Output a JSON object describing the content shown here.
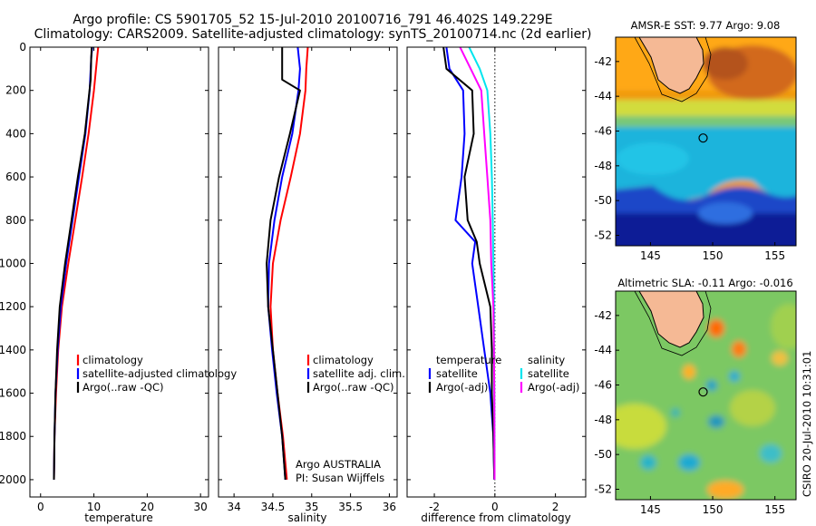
{
  "figure": {
    "title_line1": "Argo profile: CS 5901705_52 15-Jul-2010 20100716_791 46.402S 149.229E",
    "title_line2": "Climatology: CARS2009. Satellite-adjusted climatology: synTS_20100714.nc (2d earlier)",
    "credit": "Argo AUSTRALIA",
    "pi": "PI: Susan Wijffels",
    "stamp": "CSIRO 20-Jul-2010 10:31:01"
  },
  "colors": {
    "climatology": "#ff0000",
    "satellite": "#0000ff",
    "argo": "#000000",
    "satellite_salinity_diff": "#00e5ee",
    "argo_salinity_diff": "#ff00ff",
    "land": "#f5b995"
  },
  "chart_data": [
    {
      "type": "line",
      "panel": "temperature",
      "xlabel": "temperature",
      "ylabel": "",
      "xlim": [
        -2,
        31.5
      ],
      "ylim": [
        2080,
        0
      ],
      "xticks": [
        0,
        10,
        20,
        30
      ],
      "yticks": [
        0,
        200,
        400,
        600,
        800,
        1000,
        1200,
        1400,
        1600,
        1800,
        2000
      ],
      "legend_position": "lower-right",
      "series": [
        {
          "name": "climatology",
          "color": "#ff0000",
          "x": [
            10.8,
            10.6,
            10.0,
            9.0,
            7.8,
            6.5,
            5.2,
            4.0,
            3.3,
            2.9,
            2.6,
            2.5
          ],
          "y": [
            0,
            50,
            200,
            400,
            600,
            800,
            1000,
            1200,
            1400,
            1600,
            1800,
            2000
          ]
        },
        {
          "name": "satellite-adjusted climatology",
          "color": "#0000ff",
          "x": [
            9.7,
            9.5,
            9.2,
            8.4,
            7.2,
            6.0,
            4.8,
            3.8,
            3.2,
            2.8,
            2.6,
            2.5
          ],
          "y": [
            0,
            50,
            200,
            400,
            600,
            800,
            1000,
            1200,
            1400,
            1600,
            1800,
            2000
          ]
        },
        {
          "name": "Argo(..raw -QC)",
          "color": "#000000",
          "x": [
            9.6,
            9.5,
            9.4,
            8.3,
            7.0,
            5.8,
            4.6,
            3.6,
            3.1,
            2.8,
            2.6,
            2.5
          ],
          "y": [
            0,
            50,
            150,
            400,
            600,
            800,
            1000,
            1200,
            1400,
            1600,
            1800,
            2000
          ]
        }
      ]
    },
    {
      "type": "line",
      "panel": "salinity",
      "xlabel": "salinity",
      "ylabel": "",
      "xlim": [
        33.8,
        36.1
      ],
      "ylim": [
        2080,
        0
      ],
      "xticks": [
        34,
        34.5,
        35,
        35.5,
        36
      ],
      "legend_position": "lower-right",
      "series": [
        {
          "name": "climatology",
          "color": "#ff0000",
          "x": [
            34.95,
            34.93,
            34.92,
            34.85,
            34.73,
            34.6,
            34.5,
            34.47,
            34.5,
            34.56,
            34.63,
            34.68
          ],
          "y": [
            0,
            100,
            200,
            400,
            600,
            800,
            1000,
            1200,
            1400,
            1600,
            1800,
            2000
          ]
        },
        {
          "name": "satellite adj. clim.",
          "color": "#0000ff",
          "x": [
            34.82,
            34.85,
            34.83,
            34.75,
            34.62,
            34.52,
            34.45,
            34.44,
            34.49,
            34.55,
            34.62,
            34.66
          ],
          "y": [
            0,
            100,
            200,
            400,
            600,
            800,
            1000,
            1200,
            1400,
            1600,
            1800,
            2000
          ]
        },
        {
          "name": "Argo(..raw -QC)",
          "color": "#000000",
          "x": [
            34.62,
            34.62,
            34.85,
            34.72,
            34.58,
            34.47,
            34.42,
            34.44,
            34.5,
            34.56,
            34.62,
            34.66
          ],
          "y": [
            0,
            150,
            200,
            400,
            600,
            800,
            1000,
            1200,
            1400,
            1600,
            1800,
            2000
          ]
        }
      ]
    },
    {
      "type": "line",
      "panel": "difference",
      "xlabel": "difference from climatology",
      "ylabel": "",
      "xlim": [
        -2.9,
        3.0
      ],
      "ylim": [
        2080,
        0
      ],
      "xticks": [
        -2,
        0,
        2
      ],
      "legend_position": "lower-center",
      "legend_headers": [
        "temperature",
        "salinity"
      ],
      "series": [
        {
          "name": "satellite",
          "group": "temperature",
          "color": "#0000ff",
          "x": [
            -1.6,
            -1.5,
            -1.05,
            -1.0,
            -1.1,
            -1.3,
            -0.65,
            -0.75,
            -0.55,
            -0.35,
            -0.15,
            -0.05,
            -0.02
          ],
          "y": [
            0,
            100,
            200,
            400,
            600,
            800,
            900,
            1000,
            1200,
            1400,
            1600,
            1800,
            2000
          ]
        },
        {
          "name": "Argo(-adj)",
          "group": "temperature",
          "color": "#000000",
          "x": [
            -1.7,
            -1.6,
            -0.75,
            -0.7,
            -1.0,
            -0.9,
            -0.6,
            -0.5,
            -0.15,
            -0.1,
            -0.1,
            -0.05,
            -0.02
          ],
          "y": [
            0,
            100,
            200,
            400,
            600,
            800,
            900,
            1000,
            1200,
            1400,
            1600,
            1800,
            2000
          ]
        },
        {
          "name": "satellite",
          "group": "salinity",
          "color": "#00e5ee",
          "x": [
            -0.85,
            -0.5,
            -0.25,
            -0.15,
            -0.1,
            -0.07,
            -0.05,
            -0.03,
            -0.03,
            -0.02,
            -0.01
          ],
          "y": [
            0,
            100,
            200,
            400,
            600,
            800,
            1000,
            1200,
            1400,
            1600,
            2000
          ]
        },
        {
          "name": "Argo(-adj)",
          "group": "salinity",
          "color": "#ff00ff",
          "x": [
            -1.15,
            -0.8,
            -0.45,
            -0.35,
            -0.25,
            -0.15,
            -0.12,
            -0.05,
            -0.03,
            -0.02,
            -0.01
          ],
          "y": [
            0,
            100,
            200,
            400,
            600,
            800,
            1000,
            1200,
            1400,
            1600,
            2000
          ]
        }
      ]
    },
    {
      "type": "heatmap",
      "panel": "sst-map",
      "title": "AMSR-E SST: 9.77 Argo: 9.08",
      "xlim": [
        142.2,
        156.7
      ],
      "ylim": [
        -52.6,
        -40.6
      ],
      "xticks": [
        145,
        150,
        155
      ],
      "yticks": [
        -42,
        -44,
        -46,
        -48,
        -50,
        -52
      ],
      "argo_position": [
        149.229,
        -46.402
      ]
    },
    {
      "type": "heatmap",
      "panel": "sla-map",
      "title": "Altimetric SLA: -0.11 Argo: -0.016",
      "xlim": [
        142.2,
        156.7
      ],
      "ylim": [
        -52.6,
        -40.6
      ],
      "xticks": [
        145,
        150,
        155
      ],
      "yticks": [
        -42,
        -44,
        -46,
        -48,
        -50,
        -52
      ],
      "argo_position": [
        149.229,
        -46.402
      ]
    }
  ]
}
